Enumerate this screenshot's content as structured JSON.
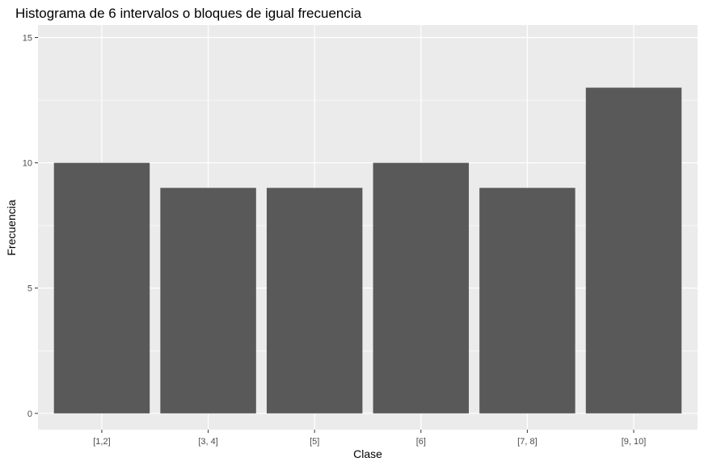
{
  "chart_data": {
    "type": "bar",
    "title": "Histograma de 6 intervalos o bloques de igual frecuencia",
    "xlabel": "Clase",
    "ylabel": "Frecuencia",
    "categories": [
      "[1,2]",
      "[3, 4]",
      "[5]",
      "[6]",
      "[7, 8]",
      "[9, 10]"
    ],
    "values": [
      10,
      9,
      9,
      10,
      9,
      13
    ],
    "ylim": [
      -0.65,
      15.5
    ],
    "yticks": [
      0,
      5,
      10,
      15
    ],
    "ytick_labels": [
      "0",
      "5",
      "10",
      "15"
    ],
    "grid": true,
    "legend": "none"
  },
  "colors": {
    "panel_background": "#ebebeb",
    "grid_major": "#ffffff",
    "bar_fill": "#595959",
    "tick_text": "#4d4d4d",
    "tick_mark": "#333333"
  }
}
